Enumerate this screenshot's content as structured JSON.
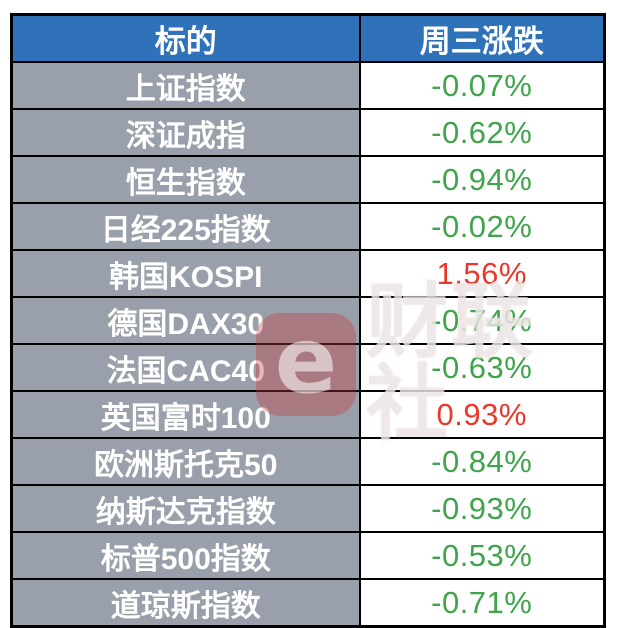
{
  "chart_data": {
    "type": "table",
    "columns": [
      {
        "label": "标的"
      },
      {
        "label": "周三涨跌"
      }
    ],
    "rows": [
      {
        "name": "上证指数",
        "change": "-0.07%",
        "change_pct": -0.07,
        "direction": "down"
      },
      {
        "name": "深证成指",
        "change": "-0.62%",
        "change_pct": -0.62,
        "direction": "down"
      },
      {
        "name": "恒生指数",
        "change": "-0.94%",
        "change_pct": -0.94,
        "direction": "down"
      },
      {
        "name": "日经225指数",
        "change": "-0.02%",
        "change_pct": -0.02,
        "direction": "down"
      },
      {
        "name": "韩国KOSPI",
        "change": "1.56%",
        "change_pct": 1.56,
        "direction": "up"
      },
      {
        "name": "德国DAX30",
        "change": "-0.74%",
        "change_pct": -0.74,
        "direction": "down"
      },
      {
        "name": "法国CAC40",
        "change": "-0.63%",
        "change_pct": -0.63,
        "direction": "down"
      },
      {
        "name": "英国富时100",
        "change": "0.93%",
        "change_pct": 0.93,
        "direction": "up"
      },
      {
        "name": "欧洲斯托克50",
        "change": "-0.84%",
        "change_pct": -0.84,
        "direction": "down"
      },
      {
        "name": "纳斯达克指数",
        "change": "-0.93%",
        "change_pct": -0.93,
        "direction": "down"
      },
      {
        "name": "标普500指数",
        "change": "-0.53%",
        "change_pct": -0.53,
        "direction": "down"
      },
      {
        "name": "道琼斯指数",
        "change": "-0.71%",
        "change_pct": -0.71,
        "direction": "down"
      }
    ],
    "legend": "red = up, green = down (Chinese market convention)"
  },
  "watermark": {
    "logo_glyph": "e",
    "text": "财联社"
  },
  "colors": {
    "header_bg": "#2F72B9",
    "header_text": "#FFFFFF",
    "label_bg": "#99A0AB",
    "label_text": "#FFFFFF",
    "value_bg": "#FFFFFF",
    "up_red": "#E8392B",
    "down_green": "#3FA44B",
    "border": "#000000"
  }
}
